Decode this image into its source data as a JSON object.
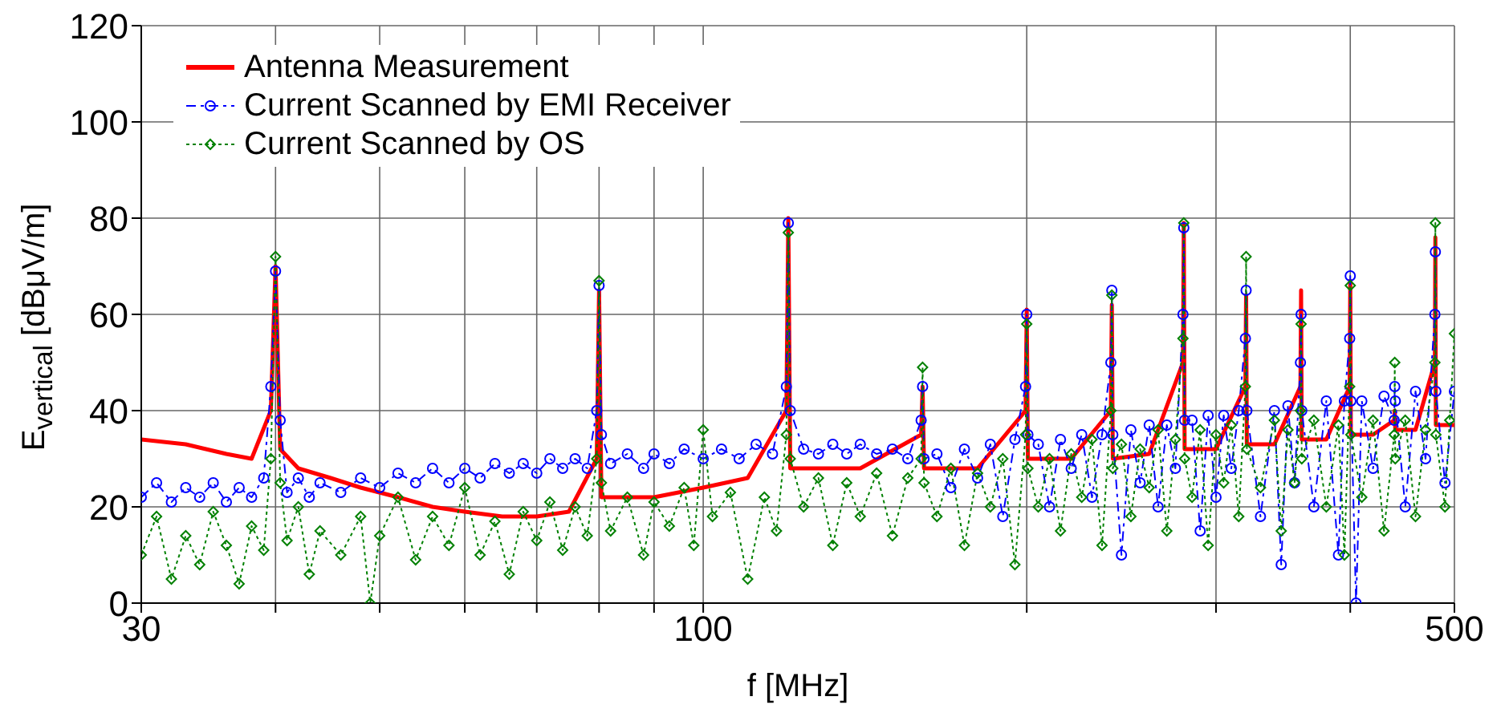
{
  "chart_data": {
    "type": "line",
    "xlabel": "f [MHz]",
    "ylabel": "E$_{vertical}$ [dBμV/m]",
    "log": "x",
    "xlim": [
      30,
      500
    ],
    "xticks": [
      30,
      {
        "value": 40,
        "label": null
      },
      {
        "value": 50,
        "label": null
      },
      {
        "value": 60,
        "label": null
      },
      {
        "value": 70,
        "label": null
      },
      {
        "value": 80,
        "label": null
      },
      {
        "value": 90,
        "label": null
      },
      100,
      {
        "value": 200,
        "label": null
      },
      {
        "value": 300,
        "label": null
      },
      {
        "value": 400,
        "label": null
      },
      500
    ],
    "ylim": [
      0,
      120
    ],
    "yticks": [
      0,
      20,
      40,
      60,
      80,
      100,
      120
    ],
    "grid": true,
    "legend": "top left",
    "series": [
      {
        "name": "Antenna Measurement",
        "color": "#ff0000",
        "marker": "none",
        "line_style": "solid",
        "x": [
          30,
          33,
          36,
          38,
          39.6,
          40,
          40.4,
          42,
          45,
          48,
          52,
          56,
          60,
          65,
          70,
          75,
          79.6,
          80,
          80.4,
          90,
          100,
          110,
          119.5,
          120,
          120.5,
          140,
          159.5,
          160,
          160.5,
          180,
          199.5,
          200,
          200.5,
          220,
          239.5,
          240,
          240.5,
          260,
          279.5,
          280,
          280.5,
          300,
          319.5,
          320,
          320.5,
          340,
          359.5,
          360,
          360.5,
          380,
          399.5,
          400,
          400.5,
          420,
          439.5,
          440,
          440.5,
          460,
          479.5,
          480,
          480.5,
          500
        ],
        "values": [
          34,
          33,
          31,
          30,
          40,
          70,
          32,
          28,
          26,
          24,
          22,
          20,
          19,
          18,
          18,
          19,
          30,
          65,
          22,
          22,
          24,
          26,
          40,
          80,
          28,
          28,
          35,
          45,
          28,
          28,
          40,
          61,
          30,
          30,
          40,
          62,
          30,
          31,
          50,
          79,
          32,
          32,
          45,
          64,
          33,
          33,
          45,
          65,
          34,
          34,
          45,
          67,
          35,
          35,
          38,
          40,
          36,
          36,
          50,
          76,
          37,
          37
        ]
      },
      {
        "name": "Current Scanned by EMI Receiver",
        "color": "#0000ff",
        "marker": "circle",
        "line_style": "dashed",
        "x": [
          30,
          31,
          32,
          33,
          34,
          35,
          36,
          37,
          38,
          39,
          39.6,
          40,
          40.4,
          41,
          42,
          43,
          44,
          46,
          48,
          50,
          52,
          54,
          56,
          58,
          60,
          62,
          64,
          66,
          68,
          70,
          72,
          74,
          76,
          78,
          79.6,
          80,
          80.4,
          82,
          85,
          88,
          90,
          93,
          96,
          100,
          104,
          108,
          112,
          116,
          119.5,
          120,
          120.5,
          124,
          128,
          132,
          136,
          140,
          145,
          150,
          155,
          159.5,
          160,
          160.5,
          165,
          170,
          175,
          180,
          185,
          190,
          195,
          199.5,
          200,
          200.5,
          205,
          210,
          215,
          220,
          225,
          230,
          235,
          239.5,
          240,
          240.5,
          245,
          250,
          255,
          260,
          265,
          270,
          275,
          279.5,
          280,
          280.5,
          285,
          290,
          295,
          300,
          305,
          310,
          315,
          319.5,
          320,
          320.5,
          330,
          340,
          345,
          350,
          355,
          359.5,
          360,
          360.5,
          370,
          380,
          390,
          395,
          399.5,
          400,
          400.5,
          405,
          410,
          420,
          430,
          439.5,
          440,
          440.5,
          450,
          460,
          470,
          479.5,
          480,
          480.5,
          490,
          500
        ],
        "values": [
          22,
          25,
          21,
          24,
          22,
          25,
          21,
          24,
          22,
          26,
          45,
          69,
          38,
          23,
          26,
          22,
          25,
          23,
          26,
          24,
          27,
          25,
          28,
          25,
          28,
          26,
          29,
          27,
          29,
          27,
          30,
          28,
          30,
          28,
          40,
          66,
          35,
          29,
          31,
          28,
          31,
          29,
          32,
          30,
          32,
          30,
          33,
          31,
          45,
          79,
          40,
          32,
          31,
          33,
          31,
          33,
          31,
          32,
          30,
          38,
          45,
          30,
          31,
          24,
          32,
          26,
          33,
          18,
          34,
          45,
          60,
          35,
          33,
          20,
          34,
          28,
          35,
          22,
          35,
          50,
          65,
          35,
          10,
          36,
          25,
          37,
          20,
          37,
          28,
          60,
          78,
          38,
          38,
          15,
          39,
          22,
          39,
          28,
          40,
          55,
          65,
          40,
          18,
          40,
          8,
          41,
          25,
          50,
          60,
          40,
          20,
          42,
          10,
          42,
          55,
          68,
          42,
          0,
          42,
          28,
          43,
          38,
          45,
          42,
          20,
          44,
          30,
          60,
          73,
          44,
          25,
          44
        ]
      },
      {
        "name": "Current Scanned by OS",
        "color": "#008000",
        "marker": "diamond",
        "line_style": "dotted",
        "x": [
          30,
          31,
          32,
          33,
          34,
          35,
          36,
          37,
          38,
          39,
          39.6,
          40,
          40.4,
          41,
          42,
          43,
          44,
          46,
          48,
          49,
          50,
          52,
          54,
          56,
          58,
          60,
          62,
          64,
          66,
          68,
          70,
          72,
          74,
          76,
          78,
          79.6,
          80,
          80.4,
          82,
          85,
          88,
          90,
          93,
          96,
          98,
          100,
          102,
          106,
          110,
          114,
          117,
          119.5,
          120,
          120.5,
          124,
          128,
          132,
          136,
          140,
          145,
          150,
          155,
          159.5,
          160,
          160.5,
          165,
          170,
          175,
          180,
          185,
          190,
          195,
          199.5,
          200,
          200.5,
          205,
          210,
          215,
          220,
          225,
          230,
          235,
          239.5,
          240,
          240.5,
          245,
          250,
          255,
          260,
          265,
          270,
          275,
          279.5,
          280,
          280.5,
          285,
          290,
          295,
          300,
          305,
          310,
          315,
          319.5,
          320,
          320.5,
          330,
          340,
          345,
          350,
          355,
          359.5,
          360,
          360.5,
          370,
          380,
          390,
          395,
          399.5,
          400,
          400.5,
          410,
          420,
          430,
          439.5,
          440,
          440.5,
          450,
          460,
          470,
          479.5,
          480,
          480.5,
          490,
          495,
          500
        ],
        "values": [
          10,
          18,
          5,
          14,
          8,
          19,
          12,
          4,
          16,
          11,
          30,
          72,
          25,
          13,
          20,
          6,
          15,
          10,
          18,
          0,
          14,
          22,
          9,
          18,
          12,
          24,
          10,
          17,
          6,
          19,
          13,
          21,
          11,
          20,
          14,
          30,
          67,
          25,
          15,
          22,
          10,
          21,
          16,
          24,
          12,
          36,
          18,
          23,
          5,
          22,
          15,
          35,
          77,
          30,
          20,
          26,
          12,
          25,
          18,
          27,
          14,
          26,
          30,
          49,
          25,
          18,
          28,
          12,
          27,
          20,
          30,
          8,
          35,
          58,
          28,
          20,
          30,
          15,
          31,
          22,
          34,
          12,
          40,
          64,
          28,
          33,
          18,
          32,
          24,
          36,
          15,
          34,
          55,
          79,
          30,
          22,
          36,
          12,
          35,
          25,
          37,
          18,
          45,
          72,
          32,
          24,
          38,
          15,
          36,
          25,
          40,
          58,
          30,
          38,
          20,
          37,
          10,
          45,
          66,
          35,
          22,
          38,
          15,
          35,
          50,
          30,
          38,
          18,
          36,
          50,
          79,
          35,
          20,
          38,
          56
        ]
      }
    ]
  }
}
